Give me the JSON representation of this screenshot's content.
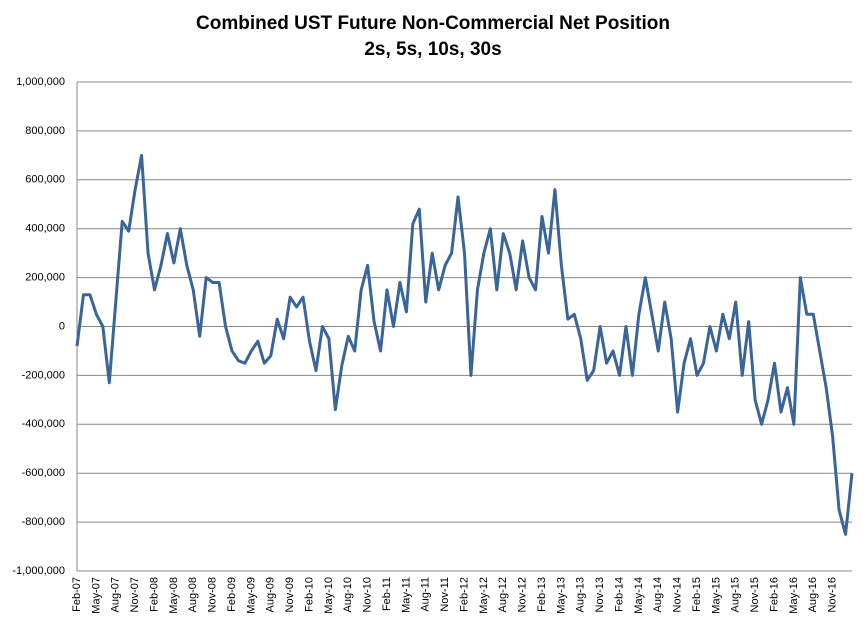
{
  "chart_data": {
    "type": "line",
    "title": "Combined UST Future Non-Commercial Net Position",
    "subtitle": "2s, 5s, 10s, 30s",
    "color": "#3a6598",
    "grid": true,
    "ylim": [
      -1000000,
      1000000
    ],
    "yticks": [
      {
        "value": -1000000,
        "label": "-1,000,000"
      },
      {
        "value": -800000,
        "label": "-800,000"
      },
      {
        "value": -600000,
        "label": "-600,000"
      },
      {
        "value": -400000,
        "label": "-400,000"
      },
      {
        "value": -200000,
        "label": "-200,000"
      },
      0,
      {
        "value": 200000,
        "label": "200,000"
      },
      {
        "value": 400000,
        "label": "400,000"
      },
      {
        "value": 600000,
        "label": "600,000"
      },
      {
        "value": 800000,
        "label": "800,000"
      },
      {
        "value": 1000000,
        "label": "1,000,000"
      }
    ],
    "categories": [
      "Feb-07",
      null,
      null,
      "May-07",
      null,
      null,
      "Aug-07",
      null,
      null,
      "Nov-07",
      null,
      null,
      "Feb-08",
      null,
      null,
      "May-08",
      null,
      null,
      "Aug-08",
      null,
      null,
      "Nov-08",
      null,
      null,
      "Feb-09",
      null,
      null,
      "May-09",
      null,
      null,
      "Aug-09",
      null,
      null,
      "Nov-09",
      null,
      null,
      "Feb-10",
      null,
      null,
      "May-10",
      null,
      null,
      "Aug-10",
      null,
      null,
      "Nov-10",
      null,
      null,
      "Feb-11",
      null,
      null,
      "May-11",
      null,
      null,
      "Aug-11",
      null,
      null,
      "Nov-11",
      null,
      null,
      "Feb-12",
      null,
      null,
      "May-12",
      null,
      null,
      "Aug-12",
      null,
      null,
      "Nov-12",
      null,
      null,
      "Feb-13",
      null,
      null,
      "May-13",
      null,
      null,
      "Aug-13",
      null,
      null,
      "Nov-13",
      null,
      null,
      "Feb-14",
      null,
      null,
      "May-14",
      null,
      null,
      "Aug-14",
      null,
      null,
      "Nov-14",
      null,
      null,
      "Feb-15",
      null,
      null,
      "May-15",
      null,
      null,
      "Aug-15",
      null,
      null,
      "Nov-15",
      null,
      null,
      "Feb-16",
      null,
      null,
      "May-16",
      null,
      null,
      "Aug-16",
      null,
      null,
      "Nov-16",
      null,
      null,
      null
    ],
    "values": [
      -80000,
      130000,
      130000,
      50000,
      0,
      -230000,
      100000,
      430000,
      390000,
      560000,
      700000,
      300000,
      150000,
      250000,
      380000,
      260000,
      400000,
      250000,
      150000,
      -40000,
      200000,
      180000,
      180000,
      0,
      -100000,
      -140000,
      -150000,
      -100000,
      -60000,
      -150000,
      -120000,
      30000,
      -50000,
      120000,
      80000,
      120000,
      -60000,
      -180000,
      0,
      -50000,
      -340000,
      -160000,
      -40000,
      -100000,
      150000,
      250000,
      20000,
      -100000,
      150000,
      0,
      180000,
      60000,
      420000,
      480000,
      100000,
      300000,
      150000,
      250000,
      300000,
      530000,
      300000,
      -200000,
      150000,
      300000,
      400000,
      150000,
      380000,
      300000,
      150000,
      350000,
      200000,
      150000,
      450000,
      300000,
      560000,
      250000,
      30000,
      50000,
      -50000,
      -220000,
      -180000,
      0,
      -150000,
      -100000,
      -200000,
      0,
      -200000,
      50000,
      200000,
      50000,
      -100000,
      100000,
      -50000,
      -350000,
      -150000,
      -50000,
      -200000,
      -150000,
      0,
      -100000,
      50000,
      -50000,
      100000,
      -200000,
      20000,
      -300000,
      -400000,
      -300000,
      -150000,
      -350000,
      -250000,
      -400000,
      200000,
      50000,
      50000,
      -100000,
      -250000,
      -450000,
      -750000,
      -850000,
      -600000
    ]
  }
}
